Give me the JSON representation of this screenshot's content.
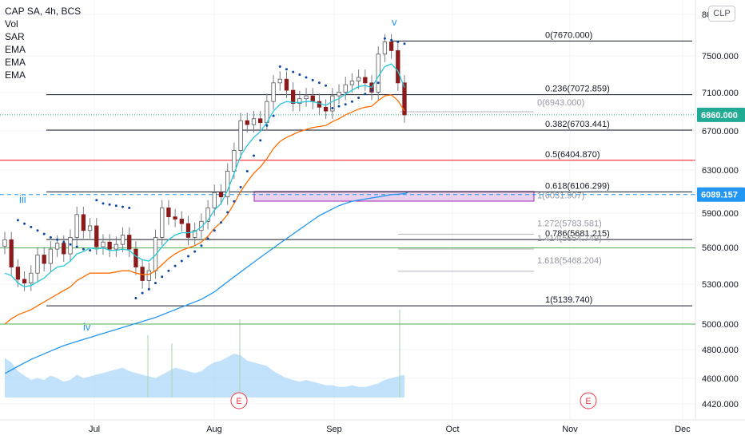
{
  "header": {
    "title": "CAP SA, 4h, BCS",
    "indicators": [
      "Vol",
      "SAR",
      "EMA",
      "EMA",
      "EMA"
    ],
    "currency": "CLP"
  },
  "chart_data": {
    "type": "candlestick",
    "title": "CAP SA, 4h, BCS",
    "y_axis": {
      "position": "right",
      "ticks": [
        "80",
        "7500.000",
        "7100.000",
        "6700.000",
        "6300.000",
        "5900.000",
        "5600.000",
        "5300.000",
        "5000.000",
        "4800.000",
        "4600.000",
        "4420.000"
      ],
      "scale": "log"
    },
    "x_axis": {
      "ticks": [
        "Jul",
        "Aug",
        "Sep",
        "Oct",
        "Nov",
        "Dec"
      ]
    },
    "price_labels": [
      {
        "text": "6860.000",
        "value": 6860,
        "color": "#22ab94"
      },
      {
        "text": "6089.157",
        "value": 6089.157,
        "color": "#2196f3"
      }
    ],
    "fibonacci": [
      {
        "label": "0(7670.000)",
        "value": 7670.0,
        "color": "#131722"
      },
      {
        "label": "0.236(7072.859)",
        "value": 7072.859,
        "color": "#131722"
      },
      {
        "label": "0.382(6703.441)",
        "value": 6703.441,
        "color": "#131722"
      },
      {
        "label": "0.5(6404.870)",
        "value": 6404.87,
        "color": "#f23645"
      },
      {
        "label": "0.618(6106.299)",
        "value": 6106.299,
        "color": "#131722"
      },
      {
        "label": "0.786(5681.215)",
        "value": 5681.215,
        "color": "#131722"
      },
      {
        "label": "1(5139.740)",
        "value": 5139.74,
        "color": "#131722"
      }
    ],
    "fibonacci_secondary": [
      {
        "label": "0(6943.000)",
        "value": 6943.0
      },
      {
        "label": "1(6031.907)",
        "value": 6031.907
      },
      {
        "label": "1.272(5783.581)",
        "value": 5783.581
      },
      {
        "label": "1.414(5654.749)",
        "value": 5654.749
      },
      {
        "label": "1.618(5468.204)",
        "value": 5468.204
      }
    ],
    "horizontal_lines": [
      {
        "value": 5610,
        "color": "#4caf50"
      },
      {
        "value": 5000,
        "color": "#4caf50"
      }
    ],
    "wave_labels": [
      "iii",
      "iv",
      "v"
    ],
    "event_markers": [
      "E",
      "E"
    ],
    "series": [
      {
        "name": "Close",
        "type": "candles",
        "values": [
          5680,
          5450,
          5350,
          5320,
          5400,
          5550,
          5480,
          5600,
          5650,
          5560,
          5700,
          5900,
          5760,
          5800,
          5620,
          5660,
          5600,
          5640,
          5720,
          5600,
          5450,
          5340,
          5420,
          5700,
          5960,
          5880,
          5860,
          5820,
          5700,
          5760,
          5840,
          5960,
          6100,
          6060,
          6300,
          6500,
          6800,
          6760,
          6820,
          6780,
          7000,
          7200,
          7240,
          7120,
          6980,
          7030,
          7060,
          7000,
          6940,
          6900,
          7060,
          7100,
          7180,
          7220,
          7260,
          7200,
          7100,
          7520,
          7660,
          7560,
          7200,
          6860
        ]
      },
      {
        "name": "EMA fast",
        "type": "line",
        "color": "#26c6da",
        "values": [
          5400,
          5380,
          5320,
          5290,
          5300,
          5330,
          5360,
          5410,
          5450,
          5460,
          5500,
          5560,
          5580,
          5610,
          5600,
          5610,
          5590,
          5590,
          5600,
          5590,
          5540,
          5510,
          5500,
          5550,
          5620,
          5680,
          5720,
          5740,
          5740,
          5750,
          5790,
          5850,
          5940,
          6000,
          6120,
          6280,
          6450,
          6550,
          6630,
          6690,
          6780,
          6900,
          6970,
          7000,
          6990,
          6990,
          7000,
          7000,
          6980,
          6960,
          7000,
          7030,
          7080,
          7120,
          7160,
          7170,
          7150,
          7270,
          7380,
          7410,
          7330,
          7150
        ]
      },
      {
        "name": "EMA mid",
        "type": "line",
        "color": "#ff6d00",
        "values": [
          5000,
          5040,
          5070,
          5090,
          5110,
          5140,
          5170,
          5200,
          5230,
          5260,
          5290,
          5340,
          5370,
          5400,
          5400,
          5400,
          5400,
          5410,
          5420,
          5420,
          5400,
          5390,
          5390,
          5420,
          5470,
          5520,
          5560,
          5590,
          5610,
          5630,
          5660,
          5710,
          5780,
          5830,
          5900,
          6000,
          6110,
          6200,
          6280,
          6340,
          6420,
          6520,
          6590,
          6630,
          6660,
          6690,
          6710,
          6730,
          6740,
          6750,
          6790,
          6820,
          6860,
          6890,
          6920,
          6940,
          6950,
          7010,
          7060,
          7070,
          7010,
          6900
        ]
      },
      {
        "name": "EMA slow",
        "type": "line",
        "color": "#2196f3",
        "values": [
          4640,
          4665,
          4690,
          4715,
          4740,
          4760,
          4780,
          4800,
          4820,
          4840,
          4855,
          4870,
          4885,
          4900,
          4915,
          4930,
          4945,
          4960,
          4975,
          4990,
          5005,
          5020,
          5035,
          5050,
          5070,
          5090,
          5110,
          5130,
          5150,
          5170,
          5190,
          5220,
          5250,
          5290,
          5330,
          5370,
          5410,
          5450,
          5490,
          5530,
          5570,
          5610,
          5650,
          5690,
          5730,
          5770,
          5810,
          5850,
          5890,
          5920,
          5950,
          5980,
          6000,
          6020,
          6030,
          6040,
          6050,
          6060,
          6070,
          6080,
          6085,
          6089
        ]
      },
      {
        "name": "Vol",
        "type": "area",
        "values": [
          0.45,
          0.4,
          0.3,
          0.25,
          0.2,
          0.22,
          0.2,
          0.25,
          0.22,
          0.18,
          0.2,
          0.26,
          0.22,
          0.24,
          0.26,
          0.28,
          0.3,
          0.32,
          0.34,
          0.3,
          0.28,
          0.26,
          0.24,
          0.22,
          0.26,
          0.3,
          0.34,
          0.32,
          0.3,
          0.28,
          0.3,
          0.36,
          0.4,
          0.42,
          0.46,
          0.5,
          0.48,
          0.42,
          0.4,
          0.38,
          0.36,
          0.3,
          0.26,
          0.22,
          0.2,
          0.18,
          0.2,
          0.18,
          0.16,
          0.14,
          0.14,
          0.12,
          0.12,
          0.14,
          0.12,
          0.12,
          0.14,
          0.16,
          0.2,
          0.22,
          0.24,
          0.26
        ]
      }
    ],
    "sar_points": [
      {
        "i": 2,
        "v": 5850
      },
      {
        "i": 3,
        "v": 5820
      },
      {
        "i": 4,
        "v": 5790
      },
      {
        "i": 5,
        "v": 5760
      },
      {
        "i": 6,
        "v": 5730
      },
      {
        "i": 7,
        "v": 5700
      },
      {
        "i": 8,
        "v": 5680
      },
      {
        "i": 9,
        "v": 5660
      },
      {
        "i": 10,
        "v": 5640
      },
      {
        "i": 11,
        "v": 5620
      },
      {
        "i": 12,
        "v": 5600
      },
      {
        "i": 13,
        "v": 5590
      },
      {
        "i": 14,
        "v": 6030
      },
      {
        "i": 15,
        "v": 6000
      },
      {
        "i": 16,
        "v": 5990
      },
      {
        "i": 17,
        "v": 5980
      },
      {
        "i": 18,
        "v": 5970
      },
      {
        "i": 19,
        "v": 5960
      },
      {
        "i": 20,
        "v": 5200
      },
      {
        "i": 21,
        "v": 5240
      },
      {
        "i": 22,
        "v": 5270
      },
      {
        "i": 23,
        "v": 5320
      },
      {
        "i": 24,
        "v": 5370
      },
      {
        "i": 25,
        "v": 5420
      },
      {
        "i": 26,
        "v": 5460
      },
      {
        "i": 27,
        "v": 5500
      },
      {
        "i": 28,
        "v": 5540
      },
      {
        "i": 29,
        "v": 5580
      },
      {
        "i": 30,
        "v": 5630
      },
      {
        "i": 31,
        "v": 5690
      },
      {
        "i": 32,
        "v": 5760
      },
      {
        "i": 33,
        "v": 5830
      },
      {
        "i": 34,
        "v": 5920
      },
      {
        "i": 35,
        "v": 6020
      },
      {
        "i": 36,
        "v": 6150
      },
      {
        "i": 37,
        "v": 6300
      },
      {
        "i": 38,
        "v": 6450
      },
      {
        "i": 39,
        "v": 6600
      },
      {
        "i": 40,
        "v": 6750
      },
      {
        "i": 41,
        "v": 6850
      },
      {
        "i": 42,
        "v": 7380
      },
      {
        "i": 43,
        "v": 7350
      },
      {
        "i": 44,
        "v": 7320
      },
      {
        "i": 45,
        "v": 7290
      },
      {
        "i": 46,
        "v": 7260
      },
      {
        "i": 47,
        "v": 7230
      },
      {
        "i": 48,
        "v": 7200
      },
      {
        "i": 49,
        "v": 7170
      },
      {
        "i": 50,
        "v": 6930
      },
      {
        "i": 51,
        "v": 6950
      },
      {
        "i": 52,
        "v": 6970
      },
      {
        "i": 53,
        "v": 7000
      },
      {
        "i": 54,
        "v": 7040
      },
      {
        "i": 55,
        "v": 7080
      },
      {
        "i": 56,
        "v": 7120
      },
      {
        "i": 57,
        "v": 7200
      },
      {
        "i": 58,
        "v": 7700
      },
      {
        "i": 59,
        "v": 7680
      },
      {
        "i": 60,
        "v": 7660
      },
      {
        "i": 61,
        "v": 7640
      }
    ],
    "grid": true,
    "legend": "top-left"
  }
}
